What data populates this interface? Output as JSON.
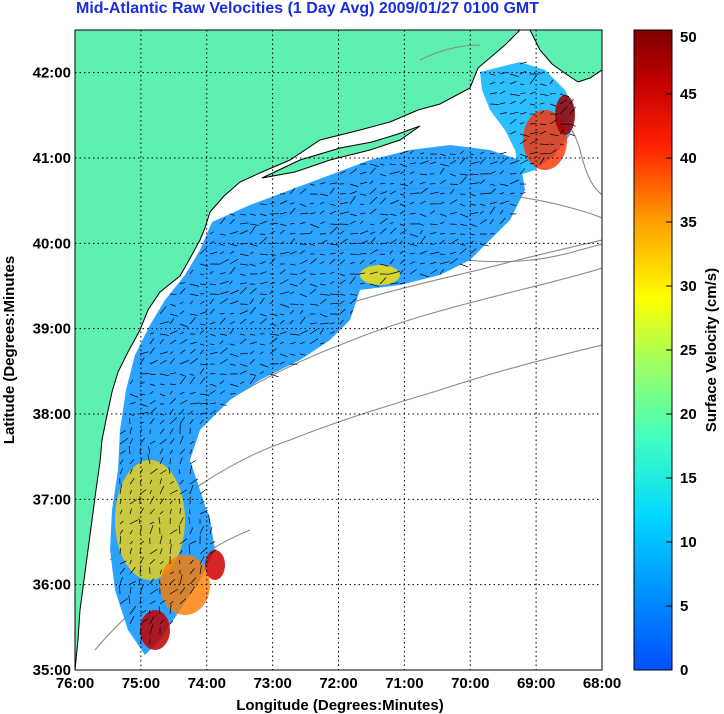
{
  "title": "Mid-Atlantic Raw Velocities (1 Day Avg) 2009/01/27 0100 GMT",
  "colors": {
    "land": "#5ef0b0",
    "ocean_bg": "#ffffff",
    "title": "#1a2ee0",
    "coast": "#000000",
    "bathymetry": "#8a8a8a",
    "grid": "#000000"
  },
  "chart_data": {
    "type": "heatmap",
    "title": "Mid-Atlantic Raw Velocities (1 Day Avg) 2009/01/27 0100 GMT",
    "xlabel": "Longitude (Degrees:Minutes)",
    "ylabel": "Latitude (Degrees:Minutes",
    "xlim": [
      -76,
      -68
    ],
    "ylim": [
      35,
      42.5
    ],
    "x_ticks": [
      "76:00",
      "75:00",
      "74:00",
      "73:00",
      "72:00",
      "71:00",
      "70:00",
      "69:00",
      "68:00"
    ],
    "y_ticks": [
      "35:00",
      "36:00",
      "37:00",
      "38:00",
      "39:00",
      "40:00",
      "41:00",
      "42:00"
    ],
    "grid": true,
    "colorbar": {
      "label": "Surface Velocity (cm/s)",
      "min": 0,
      "max": 50,
      "ticks": [
        "0",
        "5",
        "10",
        "15",
        "20",
        "25",
        "30",
        "35",
        "40",
        "45",
        "50"
      ],
      "colormap": "jet"
    }
  }
}
